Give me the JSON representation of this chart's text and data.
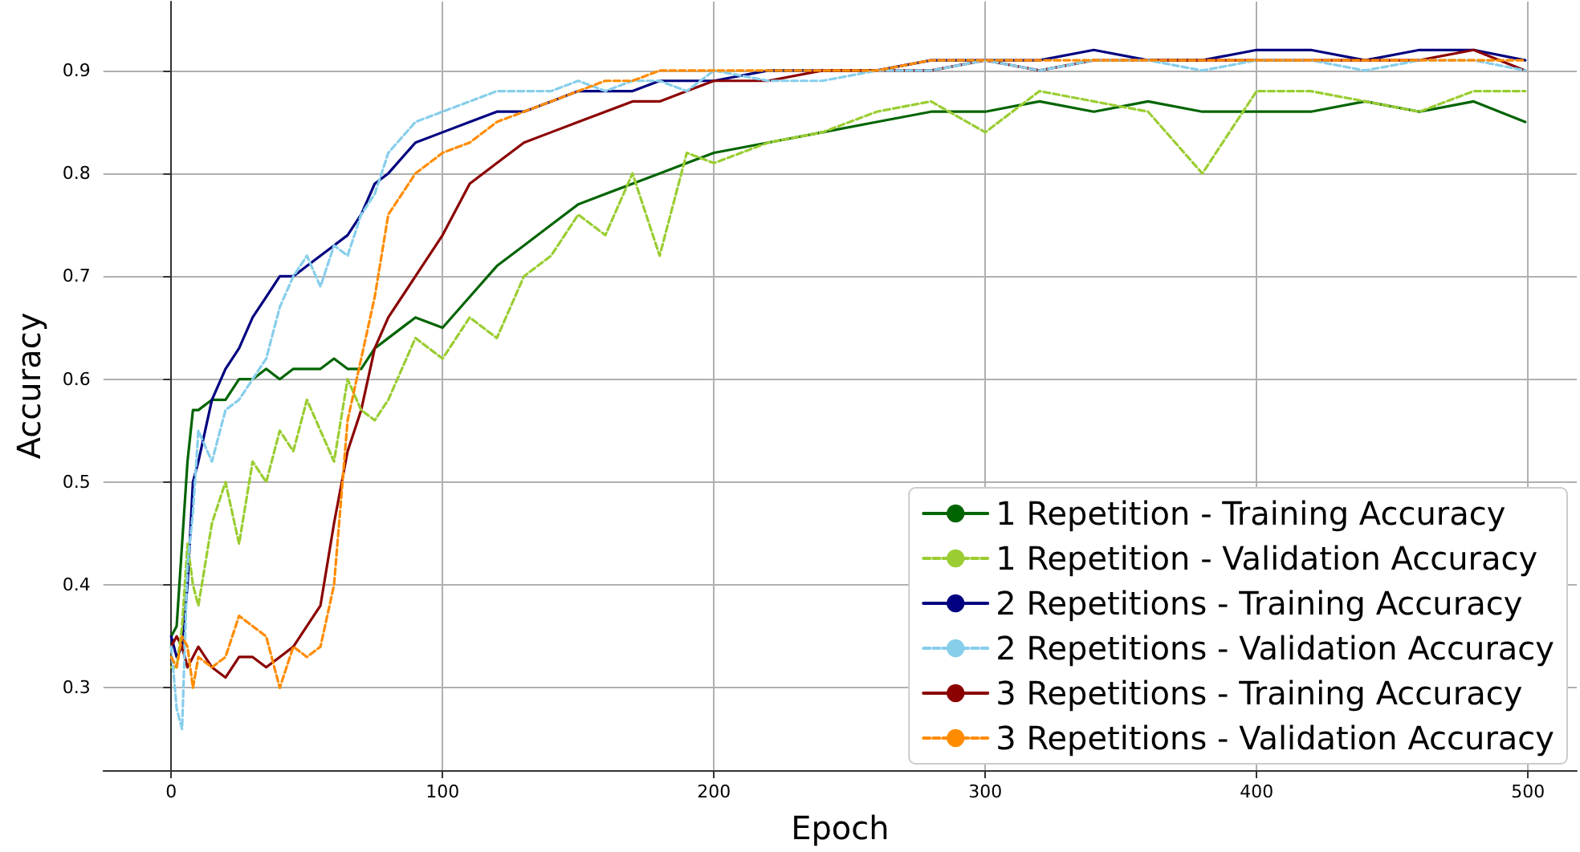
{
  "chart_data": {
    "type": "line",
    "xlabel": "Epoch",
    "ylabel": "Accuracy",
    "x": [
      0,
      2,
      4,
      6,
      8,
      10,
      15,
      20,
      25,
      30,
      35,
      40,
      45,
      50,
      55,
      60,
      65,
      70,
      75,
      80,
      90,
      100,
      110,
      120,
      130,
      140,
      150,
      160,
      170,
      180,
      190,
      200,
      220,
      240,
      260,
      280,
      300,
      320,
      340,
      360,
      380,
      400,
      420,
      440,
      460,
      480,
      499
    ],
    "series": [
      {
        "name": "1 Repetition - Training Accuracy",
        "color": "#006400",
        "line_style": "solid",
        "values": [
          0.35,
          0.36,
          0.44,
          0.52,
          0.57,
          0.57,
          0.58,
          0.58,
          0.6,
          0.6,
          0.61,
          0.6,
          0.61,
          0.61,
          0.61,
          0.62,
          0.61,
          0.61,
          0.63,
          0.64,
          0.66,
          0.65,
          0.68,
          0.71,
          0.73,
          0.75,
          0.77,
          0.78,
          0.79,
          0.8,
          0.81,
          0.82,
          0.83,
          0.84,
          0.85,
          0.86,
          0.86,
          0.87,
          0.86,
          0.87,
          0.86,
          0.86,
          0.86,
          0.87,
          0.86,
          0.87,
          0.85
        ]
      },
      {
        "name": "1 Repetition - Validation Accuracy",
        "color": "#9acd32",
        "line_style": "dashed",
        "values": [
          0.32,
          0.32,
          0.36,
          0.44,
          0.4,
          0.38,
          0.46,
          0.5,
          0.44,
          0.52,
          0.5,
          0.55,
          0.53,
          0.58,
          0.55,
          0.52,
          0.6,
          0.57,
          0.56,
          0.58,
          0.64,
          0.62,
          0.66,
          0.64,
          0.7,
          0.72,
          0.76,
          0.74,
          0.8,
          0.72,
          0.82,
          0.81,
          0.83,
          0.84,
          0.86,
          0.87,
          0.84,
          0.88,
          0.87,
          0.86,
          0.8,
          0.88,
          0.88,
          0.87,
          0.86,
          0.88,
          0.88
        ]
      },
      {
        "name": "2 Repetitions - Training Accuracy",
        "color": "#000080",
        "line_style": "solid",
        "values": [
          0.35,
          0.33,
          0.34,
          0.4,
          0.5,
          0.52,
          0.58,
          0.61,
          0.63,
          0.66,
          0.68,
          0.7,
          0.7,
          0.71,
          0.72,
          0.73,
          0.74,
          0.76,
          0.79,
          0.8,
          0.83,
          0.84,
          0.85,
          0.86,
          0.86,
          0.87,
          0.88,
          0.88,
          0.88,
          0.89,
          0.89,
          0.89,
          0.9,
          0.9,
          0.9,
          0.91,
          0.91,
          0.91,
          0.92,
          0.91,
          0.91,
          0.92,
          0.92,
          0.91,
          0.92,
          0.92,
          0.91
        ]
      },
      {
        "name": "2 Repetitions - Validation Accuracy",
        "color": "#87ceeb",
        "line_style": "dashed",
        "values": [
          0.34,
          0.28,
          0.26,
          0.42,
          0.47,
          0.55,
          0.52,
          0.57,
          0.58,
          0.6,
          0.62,
          0.67,
          0.7,
          0.72,
          0.69,
          0.73,
          0.72,
          0.76,
          0.78,
          0.82,
          0.85,
          0.86,
          0.87,
          0.88,
          0.88,
          0.88,
          0.89,
          0.88,
          0.89,
          0.89,
          0.88,
          0.9,
          0.89,
          0.89,
          0.9,
          0.9,
          0.91,
          0.9,
          0.91,
          0.91,
          0.9,
          0.91,
          0.91,
          0.9,
          0.91,
          0.91,
          0.9
        ]
      },
      {
        "name": "3 Repetitions - Training Accuracy",
        "color": "#8b0000",
        "line_style": "solid",
        "values": [
          0.34,
          0.35,
          0.34,
          0.32,
          0.33,
          0.34,
          0.32,
          0.31,
          0.33,
          0.33,
          0.32,
          0.33,
          0.34,
          0.36,
          0.38,
          0.46,
          0.53,
          0.57,
          0.63,
          0.66,
          0.7,
          0.74,
          0.79,
          0.81,
          0.83,
          0.84,
          0.85,
          0.86,
          0.87,
          0.87,
          0.88,
          0.89,
          0.89,
          0.9,
          0.9,
          0.9,
          0.91,
          0.9,
          0.91,
          0.91,
          0.91,
          0.91,
          0.91,
          0.91,
          0.91,
          0.92,
          0.9
        ]
      },
      {
        "name": "3 Repetitions - Validation Accuracy",
        "color": "#ff8c00",
        "line_style": "dashed",
        "values": [
          0.33,
          0.32,
          0.35,
          0.34,
          0.3,
          0.33,
          0.32,
          0.33,
          0.37,
          0.36,
          0.35,
          0.3,
          0.34,
          0.33,
          0.34,
          0.4,
          0.56,
          0.62,
          0.68,
          0.76,
          0.8,
          0.82,
          0.83,
          0.85,
          0.86,
          0.87,
          0.88,
          0.89,
          0.89,
          0.9,
          0.9,
          0.9,
          0.9,
          0.9,
          0.9,
          0.91,
          0.91,
          0.91,
          0.91,
          0.91,
          0.91,
          0.91,
          0.91,
          0.91,
          0.91,
          0.91,
          0.91
        ]
      }
    ],
    "xlim": [
      -25,
      518
    ],
    "xticks": [
      0,
      100,
      200,
      300,
      400,
      500
    ],
    "ylim": [
      0.22,
      0.967
    ],
    "yticks": [
      0.3,
      0.4,
      0.5,
      0.6,
      0.7,
      0.8,
      0.9
    ],
    "grid": true,
    "legend": "bottom right",
    "marker": "none"
  }
}
